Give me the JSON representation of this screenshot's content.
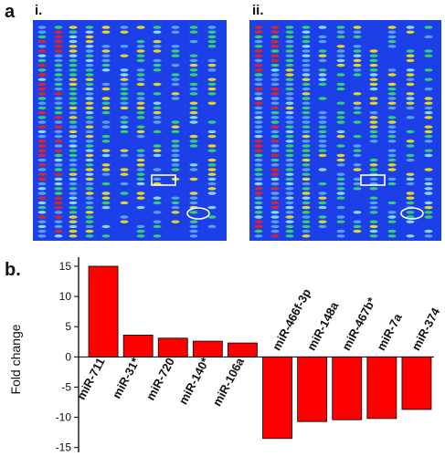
{
  "panel_a": {
    "label": "a",
    "subpanels": [
      {
        "label": "i.",
        "highlight_box": true,
        "highlight_circle": true
      },
      {
        "label": "ii.",
        "highlight_box": true,
        "highlight_circle": true
      }
    ],
    "colors": {
      "background": "#1d3fe8",
      "spot_high": "#e8231e",
      "spot_mid": "#f0e01a",
      "spot_low": "#36d86a",
      "highlight": "#ffffff"
    }
  },
  "panel_b": {
    "label": "b."
  },
  "chart_data": {
    "type": "bar",
    "categories": [
      "miR-711",
      "miR-31*",
      "miR-720",
      "miR-140*",
      "miR-106a",
      "miR-466f-3p",
      "miR-148a",
      "miR-467b*",
      "miR-7a",
      "miR-374"
    ],
    "values": [
      15,
      3.6,
      3.1,
      2.6,
      2.3,
      -13.5,
      -10.7,
      -10.4,
      -10.2,
      -8.7
    ],
    "ylabel": "Fold change",
    "ylim": [
      -15.8,
      16.5
    ],
    "yticks": [
      15,
      10,
      5,
      0,
      -5,
      -10,
      -15
    ],
    "bar_color": "#ff0000",
    "grid": false
  }
}
